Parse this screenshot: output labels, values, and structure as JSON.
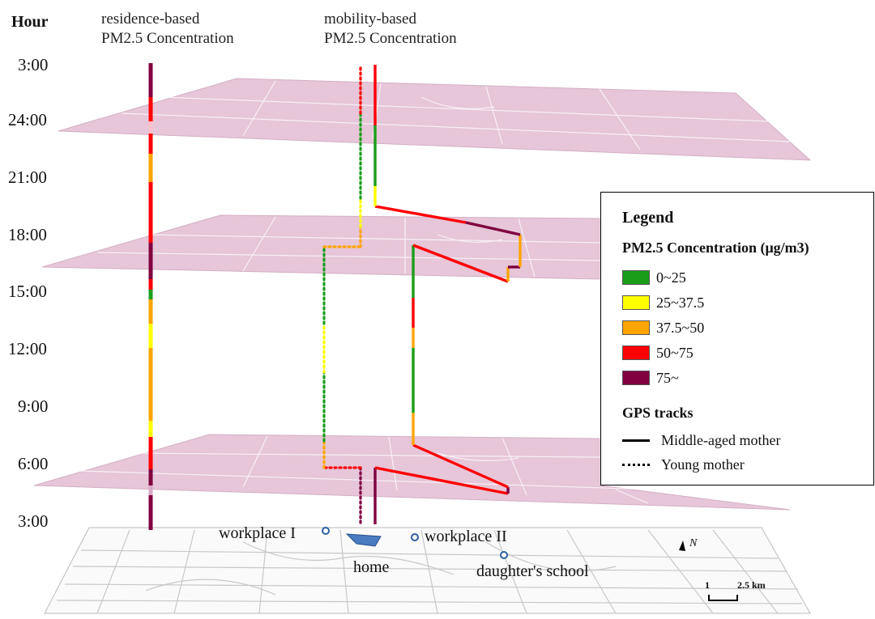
{
  "header": {
    "hour_label": "Hour",
    "residence_line1": "residence-based",
    "residence_line2": "PM2.5 Concentration",
    "mobility_line1": "mobility-based",
    "mobility_line2": "PM2.5 Concentration"
  },
  "time_ticks": [
    "3:00",
    "24:00",
    "21:00",
    "18:00",
    "15:00",
    "12:00",
    "9:00",
    "6:00",
    "3:00"
  ],
  "places": {
    "workplace1": "workplace I",
    "workplace2": "workplace II",
    "home": "home",
    "school": "daughter's school"
  },
  "legend": {
    "title": "Legend",
    "pm_title": "PM2.5 Concentration (μg/m3)",
    "classes": [
      {
        "label": "0~25",
        "color": "#1a9e1a"
      },
      {
        "label": "25~37.5",
        "color": "#ffff00"
      },
      {
        "label": "37.5~50",
        "color": "#ffa500"
      },
      {
        "label": "50~75",
        "color": "#ff0000"
      },
      {
        "label": "75~",
        "color": "#800040"
      }
    ],
    "gps_title": "GPS tracks",
    "middle_aged": "Middle-aged mother",
    "young": "Young mother"
  },
  "map": {
    "north_label": "N",
    "scale_label_a": "1",
    "scale_label_b": "2.5 km"
  },
  "colors": {
    "plane_fill": "#e6c6d8",
    "green": "#1a9e1a",
    "yellow": "#ffff00",
    "orange": "#ffa500",
    "red": "#ff0000",
    "purple": "#800040",
    "home_fill": "#4a7cc0"
  }
}
